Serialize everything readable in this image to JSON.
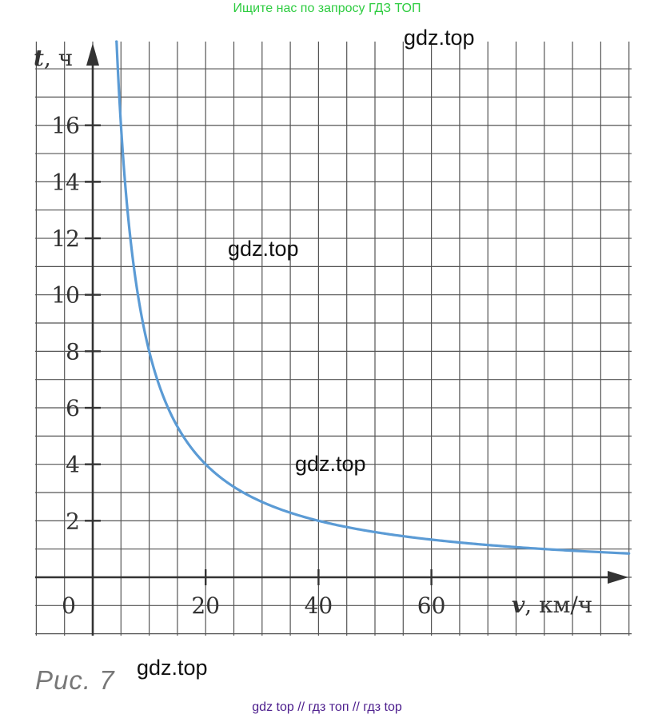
{
  "banner": "Ищите нас по запросу ГДЗ ТОП",
  "watermark": "gdz.top",
  "caption": "Рис. 7",
  "footer_links": "gdz top  //  гдз топ  //  гдз top",
  "chart_data": {
    "type": "line",
    "xlabel_var": "v",
    "xlabel_unit": ", км/ч",
    "ylabel_var": "t",
    "ylabel_unit": ", ч",
    "xlim": [
      0,
      95
    ],
    "ylim": [
      0,
      19
    ],
    "x_ticks": [
      0,
      20,
      40,
      60
    ],
    "x_tick_labels": [
      "0",
      "20",
      "40",
      "60"
    ],
    "y_ticks": [
      2,
      4,
      6,
      8,
      10,
      12,
      14,
      16
    ],
    "y_tick_labels": [
      "2",
      "4",
      "6",
      "8",
      "10",
      "12",
      "14",
      "16"
    ],
    "grid": true,
    "grid_step_x": 5,
    "grid_step_y": 1,
    "series": [
      {
        "formula": "t = 80 / v",
        "x_from": 4.2,
        "x_to": 95,
        "color": "#5b9bd5"
      }
    ]
  }
}
